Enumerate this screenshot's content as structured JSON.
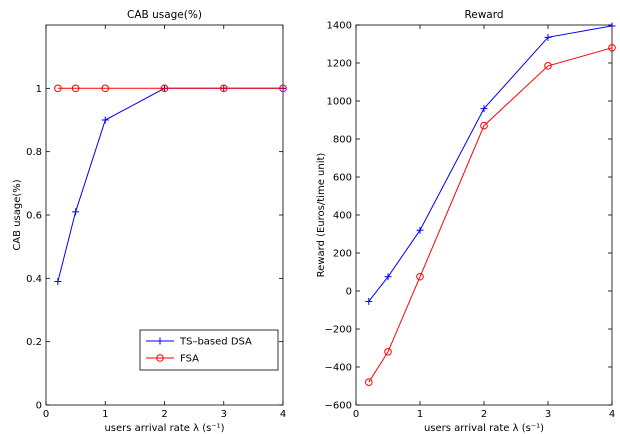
{
  "chart_data": [
    {
      "type": "line",
      "title": "CAB usage(%)",
      "xlabel": "users arrival rate λ (s⁻¹)",
      "ylabel": "CAB usage(%)",
      "xlim": [
        0,
        4
      ],
      "ylim": [
        0,
        1.2
      ],
      "xticks": [
        0,
        1,
        2,
        3,
        4
      ],
      "yticks": [
        0,
        0.2,
        0.4,
        0.6,
        0.8,
        1
      ],
      "ytick_labels": [
        "0",
        "0.2",
        "0.4",
        "0.6",
        "0.8",
        "1"
      ],
      "grid": false,
      "legend_position": "bottom-right",
      "series": [
        {
          "name": "TS–based DSA",
          "color": "#0000ff",
          "marker": "plus",
          "x": [
            0.2,
            0.5,
            1,
            2,
            3,
            4
          ],
          "y": [
            0.39,
            0.61,
            0.9,
            1.0,
            1.0,
            1.0
          ]
        },
        {
          "name": "FSA",
          "color": "#ff0000",
          "marker": "circle",
          "x": [
            0.2,
            0.5,
            1,
            2,
            3,
            4
          ],
          "y": [
            1.0,
            1.0,
            1.0,
            1.0,
            1.0,
            1.0
          ]
        }
      ]
    },
    {
      "type": "line",
      "title": "Reward",
      "xlabel": "users arrival rate λ (s⁻¹)",
      "ylabel": "Reward (Euros/time unit)",
      "xlim": [
        0,
        4
      ],
      "ylim": [
        -600,
        1400
      ],
      "xticks": [
        0,
        1,
        2,
        3,
        4
      ],
      "yticks": [
        -600,
        -400,
        -200,
        0,
        200,
        400,
        600,
        800,
        1000,
        1200,
        1400
      ],
      "ytick_labels": [
        "−600",
        "−400",
        "−200",
        "0",
        "200",
        "400",
        "600",
        "800",
        "1000",
        "1200",
        "1400"
      ],
      "grid": false,
      "series": [
        {
          "color": "#0000ff",
          "marker": "plus",
          "x": [
            0.2,
            0.5,
            1,
            2,
            3,
            4
          ],
          "y": [
            -55,
            75,
            320,
            960,
            1335,
            1395
          ]
        },
        {
          "color": "#ff0000",
          "marker": "circle",
          "x": [
            0.2,
            0.5,
            1,
            2,
            3,
            4
          ],
          "y": [
            -480,
            -320,
            75,
            870,
            1185,
            1280
          ]
        }
      ]
    }
  ]
}
